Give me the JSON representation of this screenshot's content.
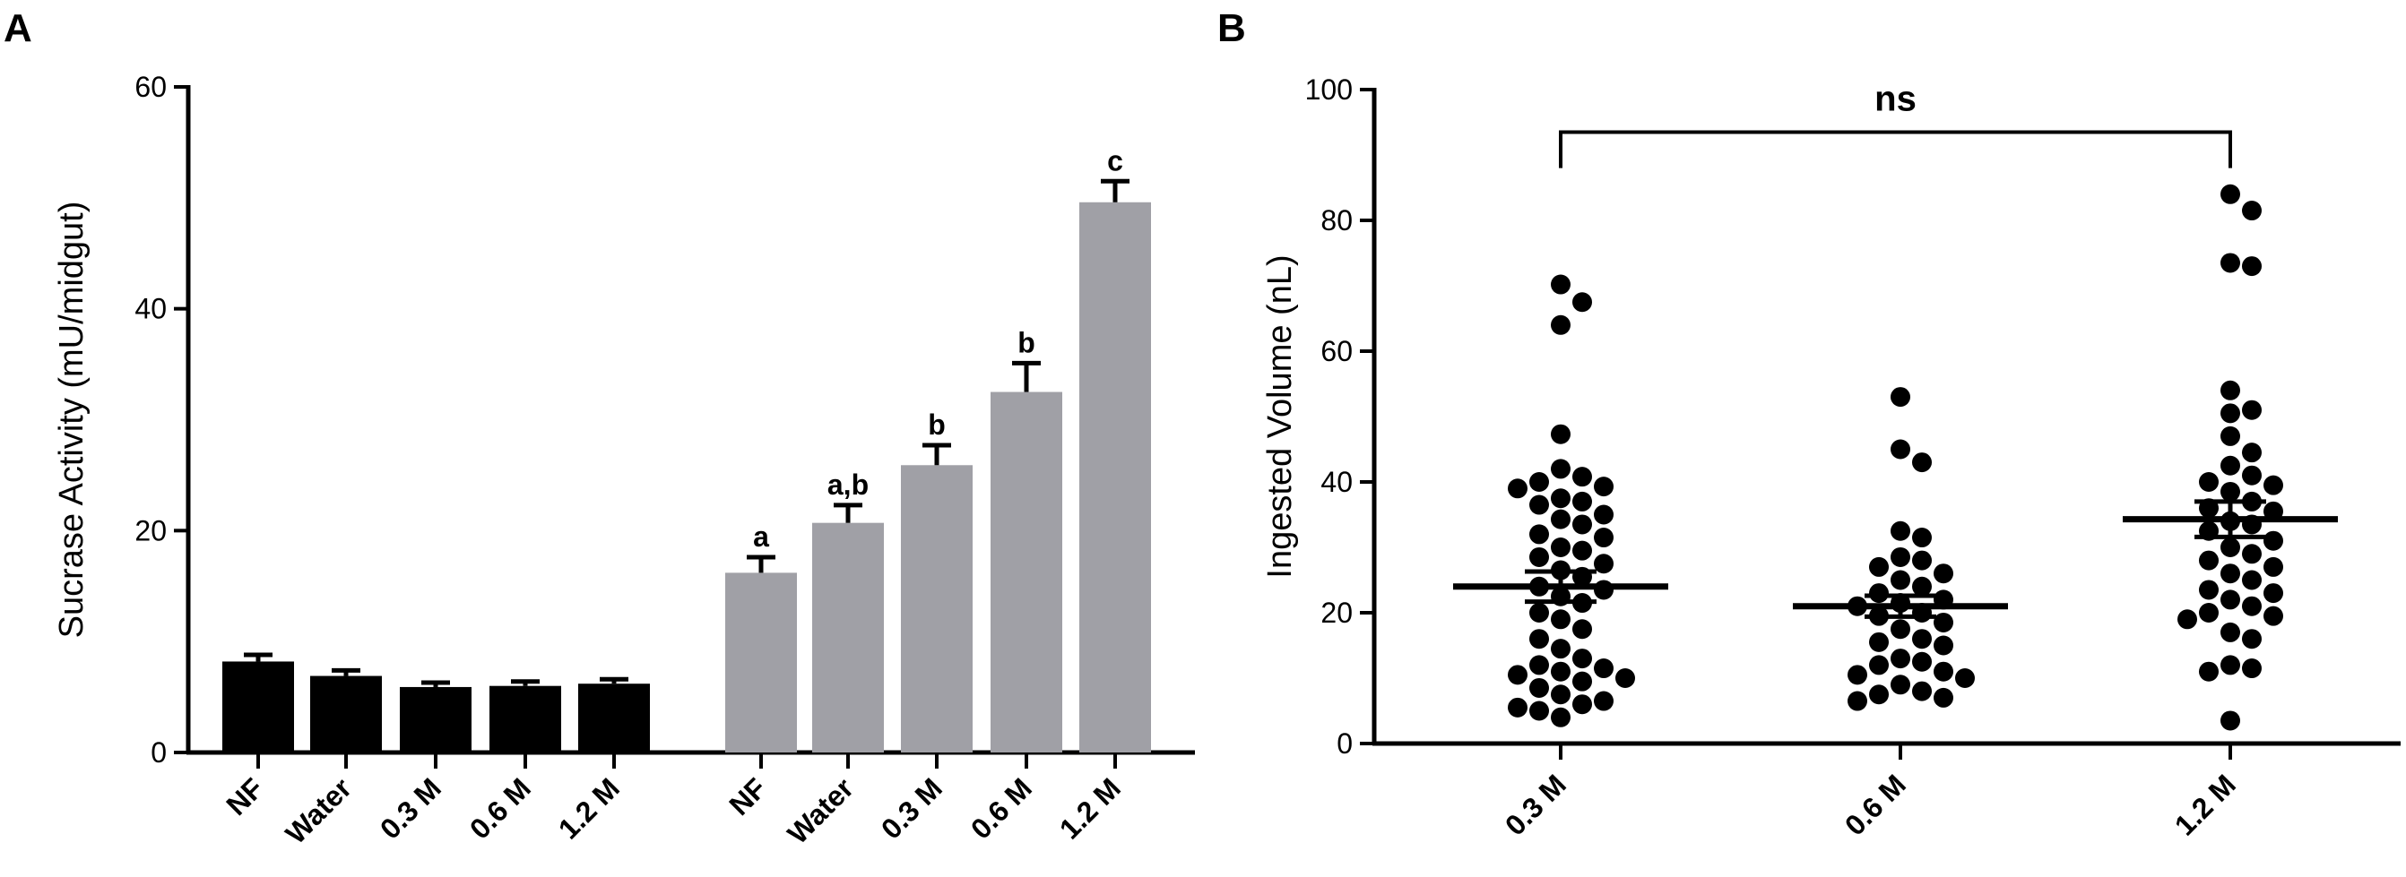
{
  "chart_data": [
    {
      "panel": "A",
      "type": "bar",
      "ylabel": "Sucrase Activity (mU/midgut)",
      "ylim": [
        0,
        60
      ],
      "yticks": [
        0,
        20,
        40,
        60
      ],
      "groups": [
        {
          "color": "#000000",
          "categories": [
            "NF",
            "Water",
            "0.3 M",
            "0.6 M",
            "1.2 M"
          ],
          "values": [
            8.2,
            6.9,
            5.9,
            6.0,
            6.2
          ],
          "errors": [
            0.6,
            0.5,
            0.4,
            0.4,
            0.4
          ],
          "labels": [
            "",
            "",
            "",
            "",
            ""
          ]
        },
        {
          "color": "#a0a0a6",
          "categories": [
            "NF",
            "Water",
            "0.3 M",
            "0.6 M",
            "1.2 M"
          ],
          "values": [
            16.2,
            20.7,
            25.9,
            32.5,
            49.6
          ],
          "errors": [
            1.4,
            1.6,
            1.8,
            2.6,
            1.9
          ],
          "labels": [
            "a",
            "a,b",
            "b",
            "b",
            "c"
          ]
        }
      ]
    },
    {
      "panel": "B",
      "type": "scatter",
      "ylabel": "Ingested Volume (nL)",
      "ylim": [
        0,
        100
      ],
      "yticks": [
        0,
        20,
        40,
        60,
        80,
        100
      ],
      "categories": [
        "0.3 M",
        "0.6 M",
        "1.2 M"
      ],
      "means": [
        24.0,
        21.0,
        34.3
      ],
      "sem": [
        2.3,
        1.6,
        2.7
      ],
      "significance": "ns",
      "series": [
        {
          "name": "0.3 M",
          "values": [
            70.2,
            67.5,
            64.0,
            47.3,
            42.0,
            40.8,
            40.0,
            39.3,
            39.0,
            37.5,
            37.0,
            36.5,
            35.0,
            34.3,
            33.5,
            32.0,
            31.5,
            30.0,
            29.5,
            28.5,
            27.5,
            26.5,
            25.5,
            24.0,
            23.5,
            22.5,
            21.5,
            20.0,
            19.0,
            17.5,
            16.0,
            14.5,
            13.0,
            12.0,
            11.5,
            11.0,
            10.5,
            10.0,
            9.5,
            8.5,
            7.5,
            6.5,
            6.0,
            5.5,
            5.0,
            4.0
          ]
        },
        {
          "name": "0.6 M",
          "values": [
            53.0,
            45.0,
            43.0,
            32.5,
            31.5,
            28.5,
            28.0,
            27.0,
            26.0,
            25.0,
            24.0,
            23.0,
            22.0,
            21.5,
            21.0,
            20.0,
            19.5,
            18.5,
            17.5,
            16.0,
            15.5,
            15.0,
            13.0,
            12.5,
            12.0,
            11.0,
            10.5,
            10.0,
            9.0,
            8.0,
            7.5,
            7.0,
            6.5
          ]
        },
        {
          "name": "1.2 M",
          "values": [
            84.0,
            81.5,
            73.5,
            73.0,
            54.0,
            51.0,
            50.5,
            47.0,
            44.5,
            42.5,
            41.0,
            40.0,
            39.5,
            38.5,
            37.0,
            36.0,
            35.5,
            34.0,
            33.5,
            32.5,
            31.0,
            30.0,
            29.0,
            28.0,
            27.0,
            26.0,
            25.0,
            23.5,
            23.0,
            22.0,
            21.0,
            20.0,
            19.5,
            19.0,
            17.0,
            16.0,
            12.0,
            11.5,
            11.0,
            3.5
          ]
        }
      ]
    }
  ]
}
